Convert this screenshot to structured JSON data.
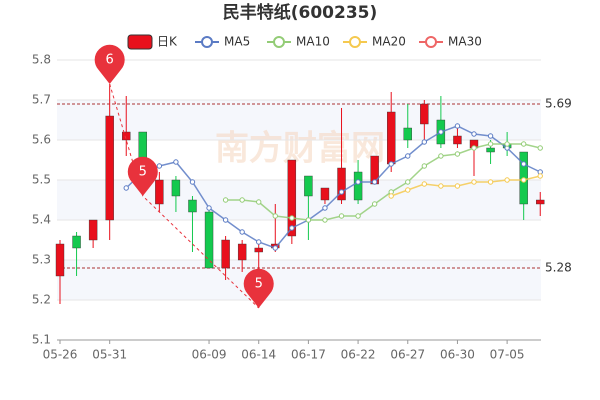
{
  "chart_data": {
    "type": "candlestick",
    "title": "民丰特纸(600235)",
    "watermark": "南方财富网",
    "categories": [
      "05-26",
      null,
      null,
      "05-31",
      null,
      null,
      null,
      null,
      null,
      "06-09",
      null,
      null,
      "06-14",
      null,
      null,
      "06-17",
      null,
      null,
      "06-22",
      null,
      null,
      "06-27",
      null,
      null,
      "06-30",
      null,
      null,
      "07-05",
      null,
      null
    ],
    "candles": {
      "name": "日K",
      "up_color": "#e8101c",
      "down_color": "#14c94e",
      "open": [
        5.26,
        5.36,
        5.35,
        5.4,
        5.6,
        5.62,
        5.44,
        5.5,
        5.45,
        5.42,
        5.28,
        5.3,
        5.32,
        5.33,
        5.36,
        5.51,
        5.45,
        5.45,
        5.52,
        5.49,
        5.54,
        5.63,
        5.64,
        5.65,
        5.59,
        5.58,
        5.58,
        5.59,
        5.57,
        5.44
      ],
      "close": [
        5.34,
        5.33,
        5.4,
        5.66,
        5.62,
        5.48,
        5.5,
        5.46,
        5.42,
        5.28,
        5.35,
        5.34,
        5.33,
        5.34,
        5.55,
        5.46,
        5.48,
        5.53,
        5.45,
        5.56,
        5.67,
        5.6,
        5.69,
        5.59,
        5.61,
        5.6,
        5.57,
        5.58,
        5.44,
        5.45
      ],
      "high": [
        5.35,
        5.37,
        5.4,
        5.74,
        5.71,
        5.62,
        5.52,
        5.51,
        5.46,
        5.43,
        5.36,
        5.35,
        5.34,
        5.44,
        5.55,
        5.51,
        5.48,
        5.68,
        5.55,
        5.56,
        5.72,
        5.69,
        5.7,
        5.71,
        5.63,
        5.6,
        5.6,
        5.62,
        5.57,
        5.47
      ],
      "low": [
        5.19,
        5.26,
        5.33,
        5.35,
        5.56,
        5.47,
        5.42,
        5.42,
        5.32,
        5.28,
        5.25,
        5.27,
        5.18,
        5.32,
        5.34,
        5.35,
        5.44,
        5.44,
        5.44,
        5.49,
        5.52,
        5.58,
        5.6,
        5.58,
        5.58,
        5.51,
        5.54,
        5.56,
        5.4,
        5.41
      ]
    },
    "series": [
      {
        "name": "MA5",
        "color": "#5b7bc4",
        "values": [
          null,
          null,
          null,
          null,
          5.48,
          5.52,
          5.535,
          5.545,
          5.495,
          5.43,
          5.4,
          5.37,
          5.345,
          5.33,
          5.38,
          5.4,
          5.43,
          5.47,
          5.495,
          5.495,
          5.54,
          5.56,
          5.595,
          5.62,
          5.635,
          5.615,
          5.61,
          5.58,
          5.54,
          5.52
        ]
      },
      {
        "name": "MA10",
        "color": "#93cc76",
        "values": [
          null,
          null,
          null,
          null,
          null,
          null,
          null,
          null,
          null,
          null,
          5.45,
          5.45,
          5.445,
          5.41,
          5.405,
          5.4,
          5.4,
          5.41,
          5.41,
          5.44,
          5.47,
          5.495,
          5.535,
          5.56,
          5.565,
          5.58,
          5.59,
          5.59,
          5.59,
          5.58
        ]
      },
      {
        "name": "MA20",
        "color": "#f5c94f",
        "values": [
          null,
          null,
          null,
          null,
          null,
          null,
          null,
          null,
          null,
          null,
          null,
          null,
          null,
          null,
          null,
          null,
          null,
          null,
          null,
          null,
          5.46,
          5.475,
          5.49,
          5.485,
          5.485,
          5.495,
          5.495,
          5.5,
          5.5,
          5.51
        ]
      },
      {
        "name": "MA30",
        "color": "#ee6666",
        "values": [
          null,
          null,
          null,
          null,
          null,
          null,
          null,
          null,
          null,
          null,
          null,
          null,
          null,
          null,
          null,
          null,
          null,
          null,
          null,
          null,
          null,
          null,
          null,
          null,
          null,
          null,
          null,
          null,
          null,
          null
        ]
      }
    ],
    "reference_lines": [
      5.69,
      5.28
    ],
    "annotations": [
      {
        "label": "6",
        "index": 3,
        "value": 5.74
      },
      {
        "label": "5",
        "index": 5,
        "value": 5.46
      },
      {
        "label": "5",
        "index": 12,
        "value": 5.18
      }
    ],
    "ylim": [
      5.1,
      5.8
    ],
    "yticks": [
      5.1,
      5.2,
      5.3,
      5.4,
      5.5,
      5.6,
      5.7,
      5.8
    ],
    "grid": true
  }
}
